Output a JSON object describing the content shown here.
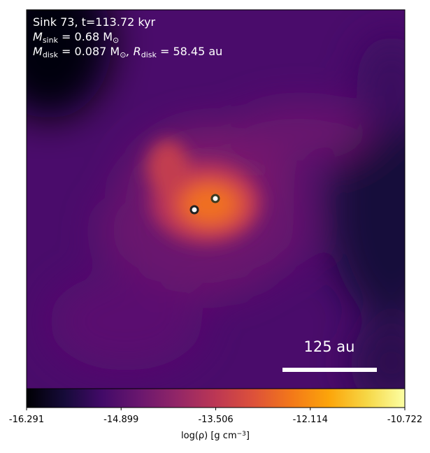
{
  "chart_data": {
    "type": "heatmap",
    "annotations": [
      [
        "Sink 73, t=113.72 kyr"
      ],
      [
        "M",
        "sink",
        " = 0.68 M",
        "⊙"
      ],
      [
        "M",
        "disk",
        " = 0.087 M",
        "⊙",
        ", R",
        "disk",
        " = 58.45 au"
      ]
    ],
    "scale_bar_label": "125 au",
    "colormap": "inferno",
    "clim": [
      -16.291,
      -10.722
    ],
    "colorbar_ticks": [
      -16.291,
      -14.899,
      -13.506,
      -12.114,
      -10.722
    ],
    "colorbar_label": [
      "log(ρ) [g cm",
      "−3",
      "]"
    ]
  }
}
